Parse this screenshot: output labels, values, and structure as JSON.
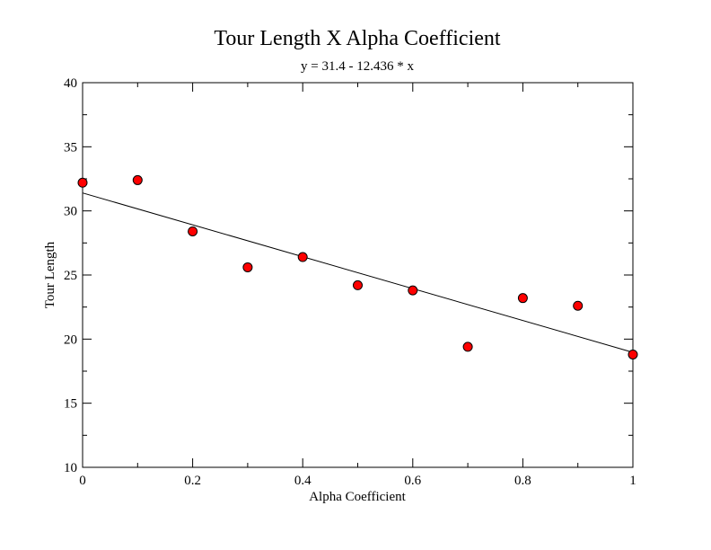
{
  "chart_data": {
    "type": "scatter",
    "title": "Tour Length X Alpha Coefficient",
    "subtitle": "y = 31.4 - 12.436 * x",
    "xlabel": "Alpha Coefficient",
    "ylabel": "Tour Length",
    "xlim": [
      0,
      1
    ],
    "ylim": [
      10,
      40
    ],
    "x_ticks": [
      0,
      0.2,
      0.4,
      0.6,
      0.8,
      1
    ],
    "x_tick_labels": [
      "0",
      "0.2",
      "0.4",
      "0.6",
      "0.8",
      "1"
    ],
    "y_ticks": [
      10,
      15,
      20,
      25,
      30,
      35,
      40
    ],
    "y_tick_labels": [
      "10",
      "15",
      "20",
      "25",
      "30",
      "35",
      "40"
    ],
    "grid": false,
    "series": [
      {
        "x": [
          0,
          0.1,
          0.2,
          0.3,
          0.4,
          0.5,
          0.6,
          0.7,
          0.8,
          0.9,
          1.0
        ],
        "y": [
          32.2,
          32.4,
          28.4,
          25.6,
          26.4,
          24.2,
          23.8,
          19.4,
          23.2,
          22.6,
          18.8
        ],
        "marker_color": "#ff0000",
        "marker_edge": "#000000"
      }
    ],
    "fit_line": {
      "intercept": 31.4,
      "slope": -12.436,
      "color": "#000000"
    }
  }
}
